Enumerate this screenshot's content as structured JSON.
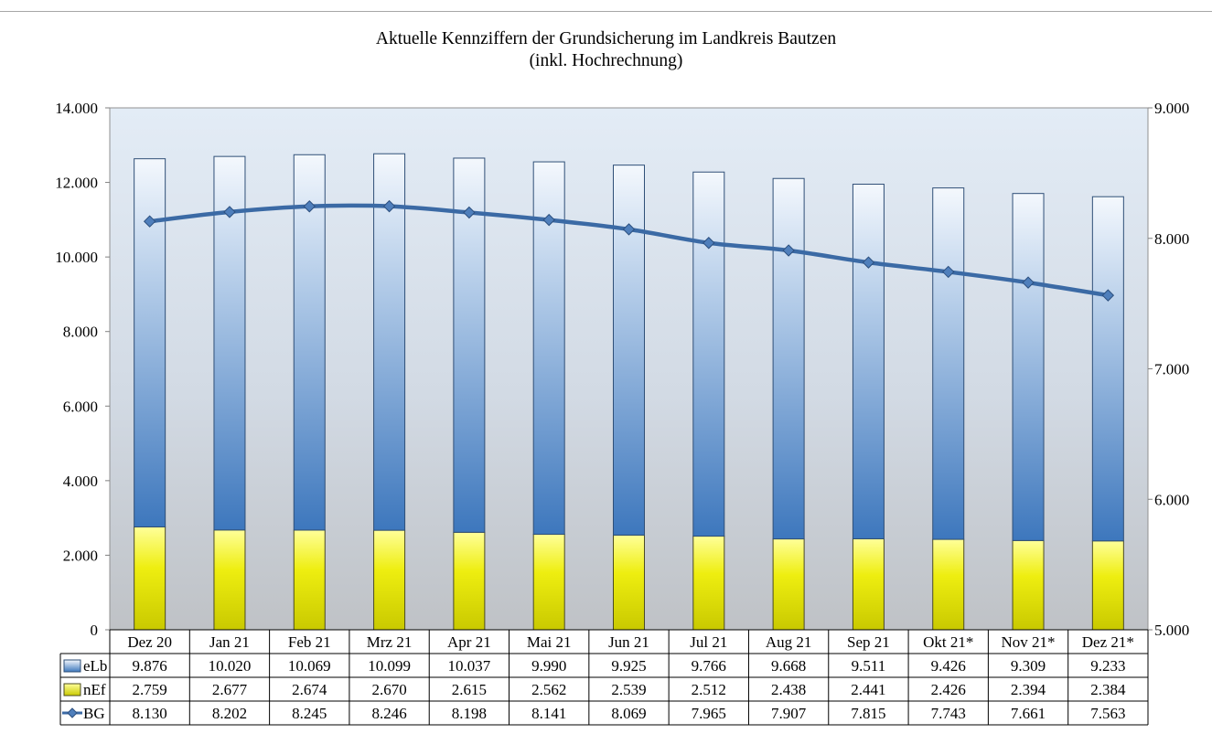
{
  "chart_data": {
    "type": "bar",
    "title": "Aktuelle Kennziffern der Grundsicherung im Landkreis Bautzen",
    "subtitle": "(inkl. Hochrechnung)",
    "categories": [
      "Dez 20",
      "Jan 21",
      "Feb 21",
      "Mrz 21",
      "Apr 21",
      "Mai 21",
      "Jun 21",
      "Jul 21",
      "Aug 21",
      "Sep 21",
      "Okt 21*",
      "Nov 21*",
      "Dez 21*"
    ],
    "series": [
      {
        "name": "nEf",
        "type": "bar",
        "axis": "left",
        "stack": "total",
        "color": "#e8e800",
        "values": [
          2759,
          2677,
          2674,
          2670,
          2615,
          2562,
          2539,
          2512,
          2438,
          2441,
          2426,
          2394,
          2384
        ],
        "labels": [
          "2.759",
          "2.677",
          "2.674",
          "2.670",
          "2.615",
          "2.562",
          "2.539",
          "2.512",
          "2.438",
          "2.441",
          "2.426",
          "2.394",
          "2.384"
        ]
      },
      {
        "name": "eLb",
        "type": "bar",
        "axis": "left",
        "stack": "total",
        "color": "#5b8fcb",
        "values": [
          9876,
          10020,
          10069,
          10099,
          10037,
          9990,
          9925,
          9766,
          9668,
          9511,
          9426,
          9309,
          9233
        ],
        "labels": [
          "9.876",
          "10.020",
          "10.069",
          "10.099",
          "10.037",
          "9.990",
          "9.925",
          "9.766",
          "9.668",
          "9.511",
          "9.426",
          "9.309",
          "9.233"
        ]
      },
      {
        "name": "BG",
        "type": "line",
        "axis": "right",
        "color": "#3b6aa5",
        "values": [
          8130,
          8202,
          8245,
          8246,
          8198,
          8141,
          8069,
          7965,
          7907,
          7815,
          7743,
          7661,
          7563
        ],
        "labels": [
          "8.130",
          "8.202",
          "8.245",
          "8.246",
          "8.198",
          "8.141",
          "8.069",
          "7.965",
          "7.907",
          "7.815",
          "7.743",
          "7.661",
          "7.563"
        ]
      }
    ],
    "y_left": {
      "min": 0,
      "max": 14000,
      "step": 2000,
      "tick_labels": [
        "0",
        "2.000",
        "4.000",
        "6.000",
        "8.000",
        "10.000",
        "12.000",
        "14.000"
      ]
    },
    "y_right": {
      "min": 5000,
      "max": 9000,
      "step": 1000,
      "tick_labels": [
        "5.000",
        "6.000",
        "7.000",
        "8.000",
        "9.000"
      ]
    },
    "data_table_rows": [
      "eLb",
      "nEf",
      "BG"
    ],
    "grid": false,
    "legend": "data-table"
  }
}
